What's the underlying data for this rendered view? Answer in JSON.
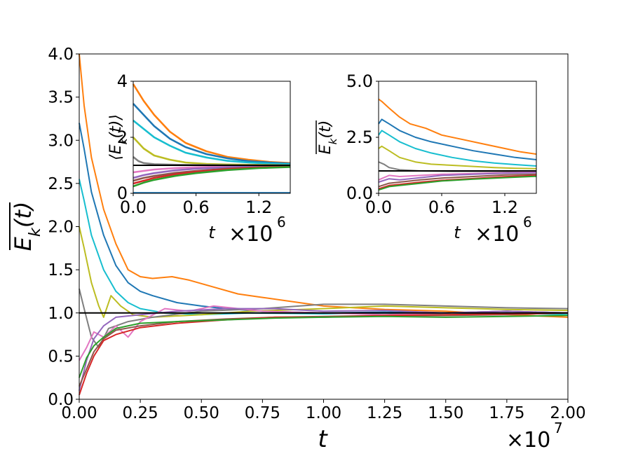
{
  "chart_data": [
    {
      "id": "main",
      "type": "line",
      "xlabel": "t",
      "ylabel": "E_k(t)",
      "ylabel_overline": true,
      "x_offset_label": "×10",
      "x_offset_exp": "7",
      "xlim": [
        0,
        2.0
      ],
      "ylim": [
        0,
        4.0
      ],
      "xticks": [
        "0.00",
        "0.25",
        "0.50",
        "0.75",
        "1.00",
        "1.25",
        "1.50",
        "1.75",
        "2.00"
      ],
      "yticks": [
        "0.0",
        "0.5",
        "1.0",
        "1.5",
        "2.0",
        "2.5",
        "3.0",
        "3.5",
        "4.0"
      ],
      "reference_line": 1.0,
      "series": [
        {
          "name": "orange",
          "color": "#ff7f0e",
          "x": [
            0,
            0.02,
            0.05,
            0.1,
            0.15,
            0.2,
            0.25,
            0.3,
            0.38,
            0.45,
            0.55,
            0.65,
            0.75,
            0.9,
            1.0,
            1.25,
            1.5,
            1.75,
            2.0
          ],
          "y": [
            4.0,
            3.4,
            2.8,
            2.2,
            1.8,
            1.5,
            1.42,
            1.4,
            1.42,
            1.38,
            1.3,
            1.22,
            1.18,
            1.12,
            1.08,
            1.04,
            1.02,
            0.98,
            0.95
          ]
        },
        {
          "name": "blue",
          "color": "#1f77b4",
          "x": [
            0,
            0.02,
            0.05,
            0.1,
            0.15,
            0.2,
            0.25,
            0.3,
            0.4,
            0.5,
            0.6,
            0.75,
            1.0,
            1.25,
            1.5,
            1.75,
            2.0
          ],
          "y": [
            3.2,
            2.9,
            2.4,
            1.9,
            1.55,
            1.35,
            1.25,
            1.2,
            1.12,
            1.08,
            1.05,
            1.02,
            1.0,
            1.01,
            1.0,
            1.02,
            1.0
          ]
        },
        {
          "name": "cyan",
          "color": "#17becf",
          "x": [
            0,
            0.02,
            0.05,
            0.1,
            0.15,
            0.2,
            0.25,
            0.35,
            0.5,
            0.7,
            1.0,
            1.25,
            1.5,
            1.75,
            2.0
          ],
          "y": [
            2.55,
            2.3,
            1.9,
            1.5,
            1.25,
            1.12,
            1.05,
            1.0,
            0.98,
            1.0,
            0.99,
            1.0,
            0.98,
            1.0,
            0.98
          ]
        },
        {
          "name": "olive",
          "color": "#bcbd22",
          "x": [
            0,
            0.02,
            0.05,
            0.08,
            0.1,
            0.13,
            0.17,
            0.22,
            0.3,
            0.5,
            0.7,
            1.0,
            1.25,
            1.5,
            1.75,
            2.0
          ],
          "y": [
            2.0,
            1.75,
            1.35,
            1.08,
            0.95,
            1.2,
            1.08,
            0.98,
            0.95,
            0.98,
            1.02,
            1.05,
            1.08,
            1.06,
            1.04,
            1.03
          ]
        },
        {
          "name": "gray",
          "color": "#7f7f7f",
          "x": [
            0,
            0.02,
            0.05,
            0.08,
            0.12,
            0.2,
            0.3,
            0.5,
            0.75,
            1.0,
            1.25,
            1.5,
            1.75,
            2.0
          ],
          "y": [
            1.28,
            1.05,
            0.72,
            0.6,
            0.82,
            0.9,
            0.95,
            1.02,
            1.05,
            1.1,
            1.1,
            1.08,
            1.06,
            1.05
          ]
        },
        {
          "name": "pink",
          "color": "#e377c2",
          "x": [
            0,
            0.03,
            0.06,
            0.1,
            0.15,
            0.2,
            0.25,
            0.35,
            0.45,
            0.55,
            0.75,
            1.0,
            1.25,
            1.5,
            1.75,
            2.0
          ],
          "y": [
            0.45,
            0.6,
            0.78,
            0.72,
            0.85,
            0.72,
            0.9,
            1.05,
            1.02,
            1.08,
            1.02,
            1.0,
            0.98,
            1.0,
            1.02,
            1.0
          ]
        },
        {
          "name": "purple",
          "color": "#9467bd",
          "x": [
            0,
            0.03,
            0.06,
            0.1,
            0.15,
            0.25,
            0.4,
            0.6,
            0.8,
            1.0,
            1.25,
            1.5,
            1.75,
            2.0
          ],
          "y": [
            0.1,
            0.45,
            0.7,
            0.85,
            0.95,
            0.98,
            1.02,
            1.05,
            1.05,
            1.02,
            1.03,
            1.0,
            1.02,
            1.0
          ]
        },
        {
          "name": "brown",
          "color": "#8c564b",
          "x": [
            0,
            0.03,
            0.06,
            0.1,
            0.15,
            0.25,
            0.4,
            0.6,
            0.8,
            1.0,
            1.25,
            1.5,
            1.75,
            2.0
          ],
          "y": [
            0.15,
            0.35,
            0.55,
            0.7,
            0.8,
            0.85,
            0.9,
            0.93,
            0.95,
            0.96,
            0.97,
            0.97,
            0.98,
            1.0
          ]
        },
        {
          "name": "red",
          "color": "#d62728",
          "x": [
            0,
            0.03,
            0.06,
            0.1,
            0.15,
            0.25,
            0.4,
            0.6,
            0.8,
            1.0,
            1.25,
            1.5,
            1.75,
            2.0
          ],
          "y": [
            0.05,
            0.3,
            0.5,
            0.68,
            0.75,
            0.83,
            0.88,
            0.92,
            0.95,
            0.95,
            0.97,
            0.98,
            0.99,
            1.0
          ]
        },
        {
          "name": "green",
          "color": "#2ca02c",
          "x": [
            0,
            0.03,
            0.06,
            0.1,
            0.15,
            0.25,
            0.4,
            0.6,
            0.8,
            1.0,
            1.25,
            1.5,
            1.75,
            2.0
          ],
          "y": [
            0.25,
            0.48,
            0.62,
            0.72,
            0.82,
            0.88,
            0.9,
            0.92,
            0.94,
            0.95,
            0.96,
            0.95,
            0.96,
            0.97
          ]
        }
      ]
    },
    {
      "id": "inset-left",
      "type": "line",
      "xlabel": "t",
      "ylabel": "⟨E_k(t)⟩",
      "ylabel_overline": false,
      "x_offset_label": "×10",
      "x_offset_exp": "6",
      "xlim": [
        0,
        1.5
      ],
      "ylim": [
        0,
        4
      ],
      "xticks": [
        "0.0",
        "0.6",
        "1.2"
      ],
      "yticks": [
        "0",
        "2",
        "4"
      ],
      "reference_line": 1.0,
      "series": [
        {
          "name": "orange",
          "color": "#ff7f0e",
          "width": 2.6,
          "x": [
            0,
            0.1,
            0.2,
            0.35,
            0.5,
            0.7,
            0.9,
            1.1,
            1.3,
            1.5
          ],
          "y": [
            3.9,
            3.3,
            2.8,
            2.2,
            1.8,
            1.5,
            1.3,
            1.2,
            1.12,
            1.08
          ]
        },
        {
          "name": "blue",
          "color": "#1f77b4",
          "width": 2.6,
          "x": [
            0,
            0.1,
            0.2,
            0.35,
            0.5,
            0.7,
            0.9,
            1.1,
            1.3,
            1.5
          ],
          "y": [
            3.2,
            2.8,
            2.4,
            1.95,
            1.65,
            1.4,
            1.25,
            1.15,
            1.1,
            1.06
          ]
        },
        {
          "name": "cyan",
          "color": "#17becf",
          "width": 2.6,
          "x": [
            0,
            0.1,
            0.2,
            0.35,
            0.5,
            0.7,
            0.9,
            1.1,
            1.3,
            1.5
          ],
          "y": [
            2.6,
            2.3,
            2.0,
            1.7,
            1.45,
            1.28,
            1.16,
            1.1,
            1.06,
            1.04
          ]
        },
        {
          "name": "olive",
          "color": "#bcbd22",
          "width": 2.6,
          "x": [
            0,
            0.1,
            0.2,
            0.35,
            0.5,
            0.7,
            0.9,
            1.1,
            1.3,
            1.5
          ],
          "y": [
            2.0,
            1.6,
            1.35,
            1.2,
            1.1,
            1.05,
            1.03,
            1.02,
            1.01,
            1.0
          ]
        },
        {
          "name": "gray",
          "color": "#7f7f7f",
          "width": 2.6,
          "x": [
            0,
            0.05,
            0.1,
            0.2,
            0.4,
            0.7,
            1.0,
            1.5
          ],
          "y": [
            1.3,
            1.15,
            1.08,
            1.04,
            1.02,
            1.01,
            1.0,
            1.0
          ]
        },
        {
          "name": "pink",
          "color": "#e377c2",
          "width": 2.6,
          "x": [
            0,
            0.1,
            0.2,
            0.4,
            0.6,
            0.9,
            1.2,
            1.5
          ],
          "y": [
            0.75,
            0.8,
            0.85,
            0.9,
            0.93,
            0.96,
            0.98,
            0.99
          ]
        },
        {
          "name": "purple",
          "color": "#9467bd",
          "width": 2.6,
          "x": [
            0,
            0.1,
            0.2,
            0.4,
            0.6,
            0.9,
            1.2,
            1.5
          ],
          "y": [
            0.55,
            0.65,
            0.72,
            0.82,
            0.88,
            0.93,
            0.96,
            0.98
          ]
        },
        {
          "name": "brown",
          "color": "#8c564b",
          "width": 2.6,
          "x": [
            0,
            0.1,
            0.2,
            0.4,
            0.6,
            0.9,
            1.2,
            1.5
          ],
          "y": [
            0.45,
            0.55,
            0.62,
            0.73,
            0.8,
            0.88,
            0.93,
            0.96
          ]
        },
        {
          "name": "red",
          "color": "#d62728",
          "width": 2.6,
          "x": [
            0,
            0.1,
            0.2,
            0.4,
            0.6,
            0.9,
            1.2,
            1.5
          ],
          "y": [
            0.35,
            0.45,
            0.55,
            0.68,
            0.77,
            0.86,
            0.92,
            0.95
          ]
        },
        {
          "name": "green",
          "color": "#2ca02c",
          "width": 2.6,
          "x": [
            0,
            0.1,
            0.2,
            0.4,
            0.6,
            0.9,
            1.2,
            1.5
          ],
          "y": [
            0.25,
            0.38,
            0.48,
            0.62,
            0.72,
            0.83,
            0.9,
            0.94
          ]
        },
        {
          "name": "blue-zero",
          "color": "#1f77b4",
          "width": 2.2,
          "x": [
            0,
            1.5
          ],
          "y": [
            0.02,
            0.02
          ]
        }
      ]
    },
    {
      "id": "inset-right",
      "type": "line",
      "xlabel": "t",
      "ylabel": "E_k(t)",
      "ylabel_overline": true,
      "x_offset_label": "×10",
      "x_offset_exp": "6",
      "xlim": [
        0,
        1.5
      ],
      "ylim": [
        0,
        5.0
      ],
      "xticks": [
        "0.0",
        "0.6",
        "1.2"
      ],
      "yticks": [
        "0.0",
        "2.5",
        "5.0"
      ],
      "reference_line": 1.0,
      "series": [
        {
          "name": "orange",
          "color": "#ff7f0e",
          "x": [
            0,
            0.03,
            0.1,
            0.2,
            0.3,
            0.45,
            0.6,
            0.8,
            1.0,
            1.2,
            1.35,
            1.5
          ],
          "y": [
            4.2,
            4.1,
            3.8,
            3.4,
            3.1,
            2.9,
            2.6,
            2.4,
            2.2,
            2.0,
            1.85,
            1.75
          ]
        },
        {
          "name": "blue",
          "color": "#1f77b4",
          "x": [
            0,
            0.03,
            0.1,
            0.2,
            0.35,
            0.5,
            0.7,
            0.9,
            1.1,
            1.3,
            1.5
          ],
          "y": [
            3.1,
            3.3,
            3.1,
            2.8,
            2.5,
            2.3,
            2.1,
            1.9,
            1.75,
            1.6,
            1.5
          ]
        },
        {
          "name": "cyan",
          "color": "#17becf",
          "x": [
            0,
            0.03,
            0.1,
            0.2,
            0.35,
            0.5,
            0.7,
            0.9,
            1.1,
            1.3,
            1.5
          ],
          "y": [
            2.6,
            2.8,
            2.6,
            2.3,
            2.0,
            1.8,
            1.6,
            1.45,
            1.35,
            1.28,
            1.22
          ]
        },
        {
          "name": "olive",
          "color": "#bcbd22",
          "x": [
            0,
            0.03,
            0.1,
            0.2,
            0.35,
            0.5,
            0.7,
            0.9,
            1.1,
            1.3,
            1.5
          ],
          "y": [
            2.0,
            2.1,
            1.9,
            1.6,
            1.4,
            1.3,
            1.25,
            1.2,
            1.15,
            1.12,
            1.1
          ]
        },
        {
          "name": "gray",
          "color": "#7f7f7f",
          "x": [
            0,
            0.05,
            0.1,
            0.2,
            0.4,
            0.7,
            1.0,
            1.5
          ],
          "y": [
            1.4,
            1.3,
            1.15,
            1.05,
            1.0,
            0.98,
            0.98,
            0.98
          ]
        },
        {
          "name": "pink",
          "color": "#e377c2",
          "x": [
            0,
            0.1,
            0.2,
            0.4,
            0.6,
            0.9,
            1.2,
            1.5
          ],
          "y": [
            0.6,
            0.8,
            0.75,
            0.8,
            0.85,
            0.88,
            0.92,
            0.95
          ]
        },
        {
          "name": "purple",
          "color": "#9467bd",
          "x": [
            0,
            0.1,
            0.2,
            0.4,
            0.6,
            0.9,
            1.2,
            1.5
          ],
          "y": [
            0.5,
            0.65,
            0.6,
            0.7,
            0.8,
            0.85,
            0.9,
            0.92
          ]
        },
        {
          "name": "brown",
          "color": "#8c564b",
          "x": [
            0,
            0.1,
            0.2,
            0.4,
            0.6,
            0.9,
            1.2,
            1.5
          ],
          "y": [
            0.3,
            0.45,
            0.5,
            0.6,
            0.68,
            0.75,
            0.82,
            0.85
          ]
        },
        {
          "name": "red",
          "color": "#d62728",
          "x": [
            0,
            0.1,
            0.2,
            0.4,
            0.6,
            0.9,
            1.2,
            1.5
          ],
          "y": [
            0.2,
            0.35,
            0.4,
            0.5,
            0.58,
            0.66,
            0.74,
            0.8
          ]
        },
        {
          "name": "green",
          "color": "#2ca02c",
          "x": [
            0,
            0.1,
            0.2,
            0.4,
            0.6,
            0.9,
            1.2,
            1.5
          ],
          "y": [
            0.15,
            0.3,
            0.35,
            0.45,
            0.55,
            0.63,
            0.7,
            0.76
          ]
        }
      ]
    }
  ]
}
